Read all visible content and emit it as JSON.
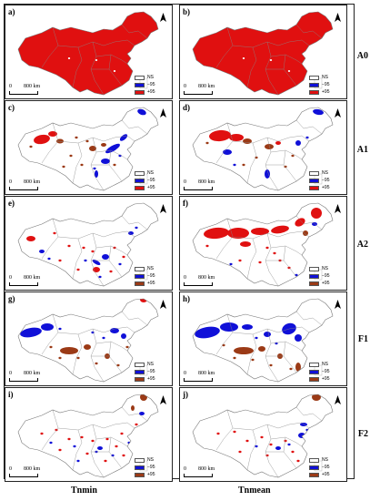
{
  "colors": {
    "ns": "#ffffff",
    "neg": "#1010d8",
    "pos": "#e01010",
    "pos_dark": "#9b3a16",
    "outline": "#888888"
  },
  "legend": {
    "ns": "NS",
    "neg": "−95",
    "pos": "+95"
  },
  "scale": {
    "zero": "0",
    "distance": "800 km"
  },
  "north_icon": "north-arrow-icon",
  "columns": [
    "Tnmin",
    "Tnmean"
  ],
  "rows": [
    "A0",
    "A1",
    "A2",
    "F1",
    "F2"
  ],
  "panels": [
    {
      "label": "a)",
      "fill": "full"
    },
    {
      "label": "b)",
      "fill": "full"
    },
    {
      "label": "c)",
      "fill": "c"
    },
    {
      "label": "d)",
      "fill": "d"
    },
    {
      "label": "e)",
      "fill": "e"
    },
    {
      "label": "f)",
      "fill": "f"
    },
    {
      "label": "g)",
      "fill": "g"
    },
    {
      "label": "h)",
      "fill": "h"
    },
    {
      "label": "i)",
      "fill": "i"
    },
    {
      "label": "j)",
      "fill": "j"
    }
  ]
}
